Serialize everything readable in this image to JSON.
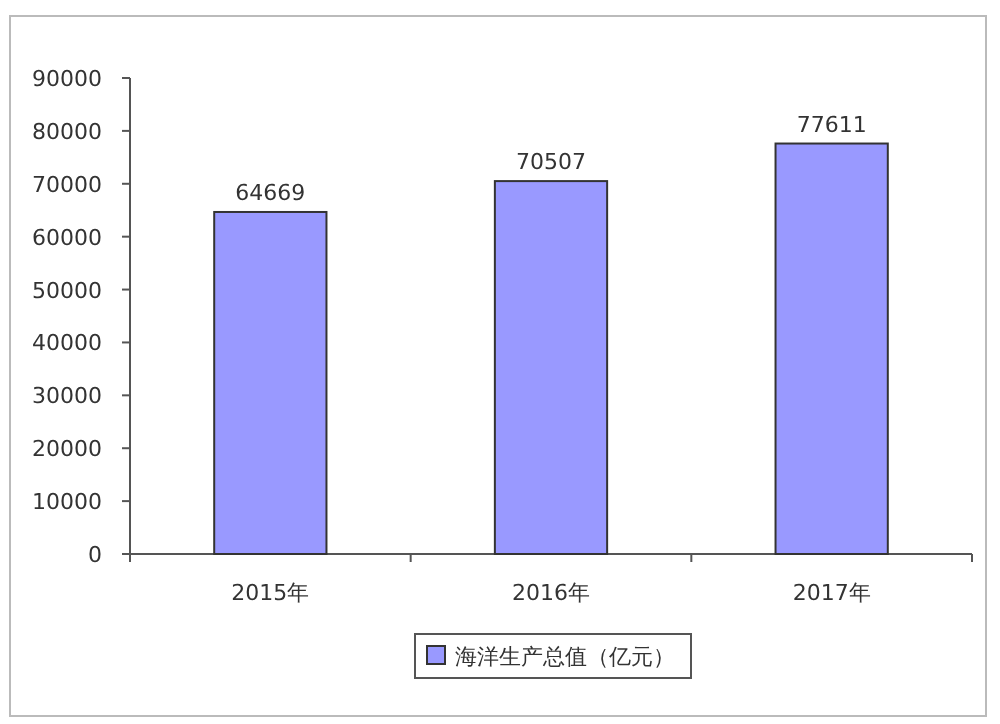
{
  "chart_data": {
    "type": "bar",
    "categories": [
      "2015年",
      "2016年",
      "2017年"
    ],
    "series": [
      {
        "name": "海洋生产总值（亿元）",
        "color": "#9999ff",
        "values": [
          64669,
          70507,
          77611
        ]
      }
    ],
    "ylim": [
      0,
      90000
    ],
    "yticks": [
      0,
      10000,
      20000,
      30000,
      40000,
      50000,
      60000,
      70000,
      80000,
      90000
    ],
    "data_labels": true,
    "grid": false,
    "legend": "bottom"
  }
}
